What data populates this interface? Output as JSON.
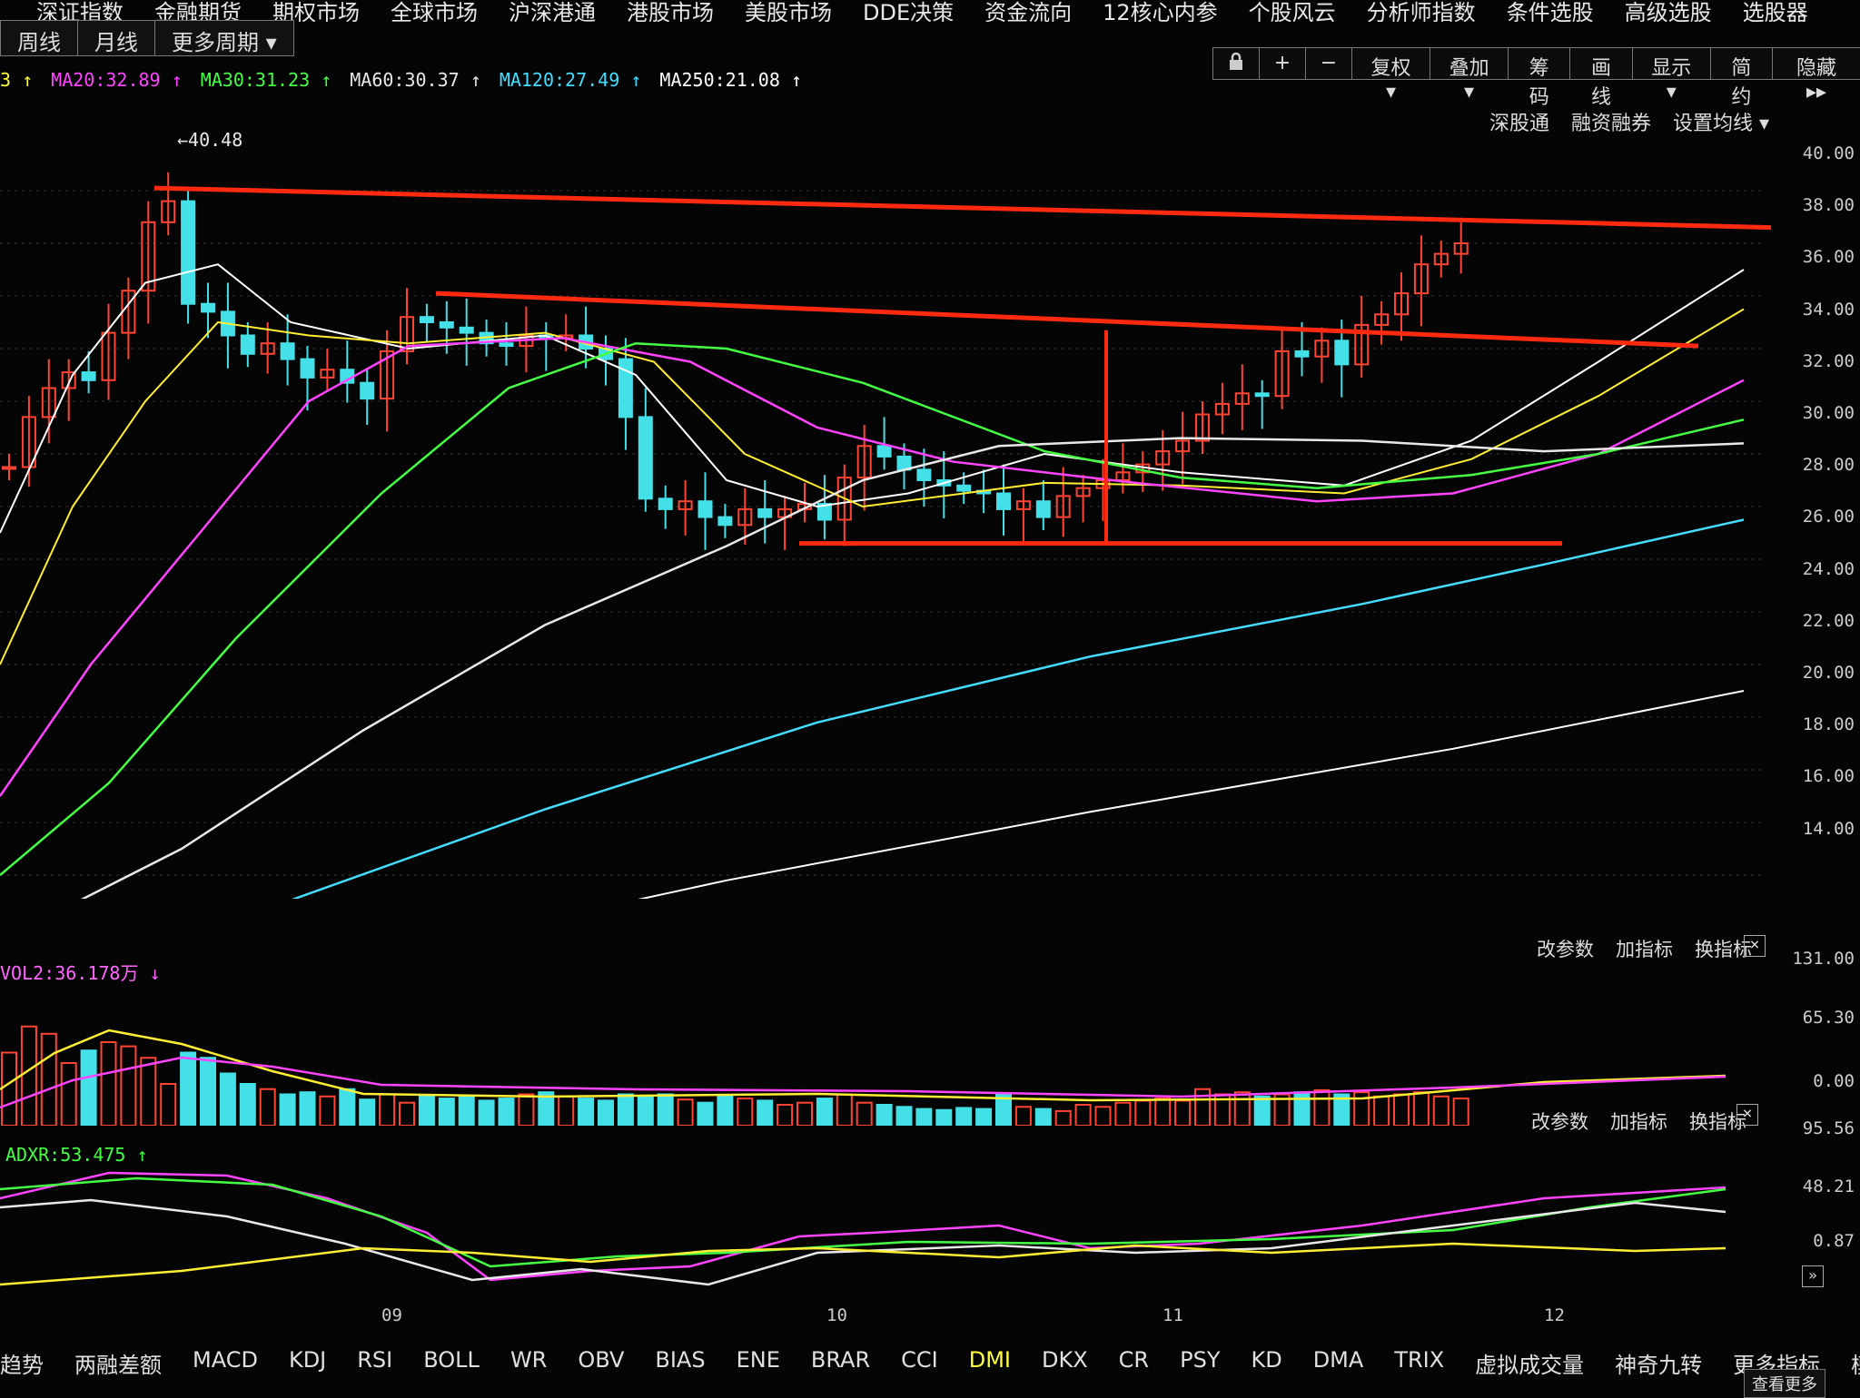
{
  "top_menu": [
    "深证指数",
    "金融期货",
    "期权市场",
    "全球市场",
    "沪深港通",
    "港股市场",
    "美股市场",
    "DDE决策",
    "资金流向",
    "12核心内参",
    "个股风云",
    "分析师指数",
    "条件选股",
    "高级选股",
    "选股器"
  ],
  "period_tabs": [
    "周线",
    "月线",
    "更多周期 ▾"
  ],
  "toolbar": {
    "lock_icon": "lock-icon",
    "zoom_in": "+",
    "zoom_out": "−",
    "fuquan": "复权 ▾",
    "diejia": "叠加 ▾",
    "chouma": "筹码",
    "huaxian": "画线",
    "xianshi": "显示 ▾",
    "jianyue": "简约",
    "yincang": "隐藏 ▸▸"
  },
  "ma_legend": [
    {
      "text": "3 ↑",
      "color": "#ffffff"
    },
    {
      "text": "MA20:32.89 ↑",
      "color": "#ff44ff"
    },
    {
      "text": "MA30:31.23 ↑",
      "color": "#44ff44"
    },
    {
      "text": "MA60:30.37 ↑",
      "color": "#e8e8e8"
    },
    {
      "text": "MA120:27.49 ↑",
      "color": "#44ddff"
    },
    {
      "text": "MA250:21.08 ↑",
      "color": "#ffffff"
    }
  ],
  "main_links": [
    "深股通",
    "融资融券",
    "设置均线 ▾"
  ],
  "peak_label": "40.48",
  "price_axis": [
    "40.00",
    "38.00",
    "36.00",
    "34.00",
    "32.00",
    "30.00",
    "28.00",
    "26.00",
    "24.00",
    "22.00",
    "20.00",
    "18.00",
    "16.00",
    "14.00"
  ],
  "volume": {
    "legend": "VOL2:36.178万 ↓",
    "links": [
      "改参数",
      "加指标",
      "换指标"
    ],
    "axis": [
      "131.00",
      "65.30",
      "0.00"
    ]
  },
  "dmi": {
    "legend": "ADXR:53.475 ↑",
    "links": [
      "改参数",
      "加指标",
      "换指标"
    ],
    "axis": [
      "95.56",
      "48.21",
      "0.87"
    ]
  },
  "month_labels": [
    "09",
    "10",
    "11",
    "12"
  ],
  "bottom_tabs": [
    "趋势",
    "两融差额",
    "MACD",
    "KDJ",
    "RSI",
    "BOLL",
    "WR",
    "OBV",
    "BIAS",
    "ENE",
    "BRAR",
    "CCI",
    "DMI",
    "DKX",
    "CR",
    "PSY",
    "KD",
    "DMA",
    "TRIX",
    "虚拟成交量",
    "神奇九转",
    "更多指标",
    "模板"
  ],
  "active_tab": "DMI",
  "corner_button": "查看更多",
  "close_icon": "close-icon",
  "colors": {
    "up": "#ff4433",
    "down": "#44e0e8",
    "ma5": "#ffffff",
    "ma10": "#ffee33",
    "ma20": "#ff44ff",
    "ma30": "#44ff44",
    "ma60": "#e8e8e8",
    "ma120": "#44ddff",
    "trend": "#ff2a10"
  }
}
